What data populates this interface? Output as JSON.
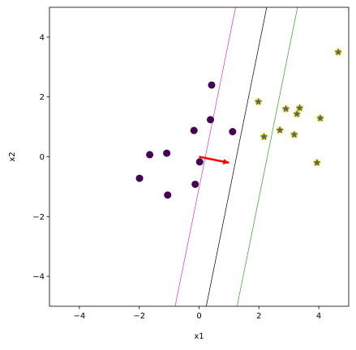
{
  "chart_data": {
    "type": "scatter",
    "title": "",
    "xlabel": "x1",
    "ylabel": "x2",
    "xlim": [
      -5,
      5
    ],
    "ylim": [
      -5,
      5
    ],
    "xticks": [
      -4,
      -2,
      0,
      2,
      4
    ],
    "yticks": [
      -4,
      -2,
      0,
      2,
      4
    ],
    "grid": false,
    "series": [
      {
        "class": 0,
        "color": "#440154",
        "marker": "circle",
        "points": [
          [
            0.42,
            2.4
          ],
          [
            0.38,
            1.24
          ],
          [
            -0.17,
            0.88
          ],
          [
            1.12,
            0.84
          ],
          [
            -1.08,
            0.12
          ],
          [
            -1.65,
            0.07
          ],
          [
            0.02,
            -0.17
          ],
          [
            -1.99,
            -0.72
          ],
          [
            -0.13,
            -0.92
          ],
          [
            -1.05,
            -1.28
          ]
        ]
      },
      {
        "class": 1,
        "color": "#fde725",
        "marker": "circle",
        "overlay_marker": "star",
        "overlay_color": "#1f3a93",
        "points": [
          [
            4.65,
            3.5
          ],
          [
            1.98,
            1.84
          ],
          [
            2.9,
            1.6
          ],
          [
            3.36,
            1.63
          ],
          [
            3.27,
            1.43
          ],
          [
            4.05,
            1.29
          ],
          [
            2.7,
            0.89
          ],
          [
            3.18,
            0.74
          ],
          [
            2.17,
            0.67
          ],
          [
            3.94,
            -0.2
          ]
        ]
      }
    ],
    "lines": [
      {
        "color": "#cc33cc",
        "points": [
          [
            -0.8,
            -5
          ],
          [
            1.22,
            5
          ]
        ]
      },
      {
        "color": "#000000",
        "points": [
          [
            0.24,
            -5
          ],
          [
            2.26,
            5
          ]
        ]
      },
      {
        "color": "#2ca02c",
        "points": [
          [
            1.27,
            -5
          ],
          [
            3.29,
            5
          ]
        ]
      }
    ],
    "arrow": {
      "color": "#ff0000",
      "from": [
        0,
        0
      ],
      "to": [
        1.0,
        -0.2
      ]
    }
  }
}
